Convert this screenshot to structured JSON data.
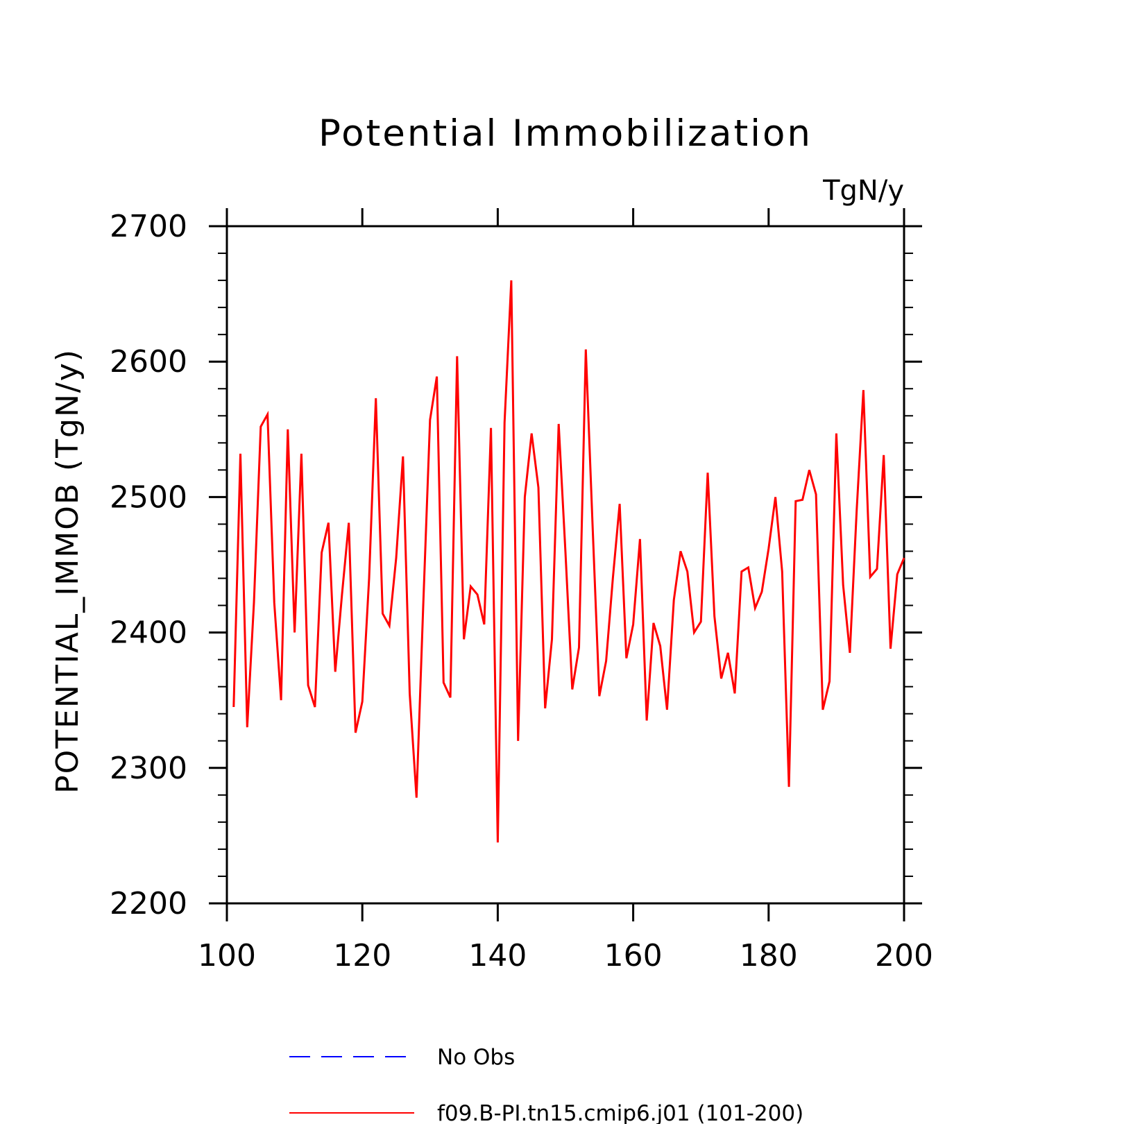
{
  "chart_data": {
    "type": "line",
    "title": "Potential Immobilization",
    "units_label": "TgN/y",
    "ylabel": "POTENTIAL_IMMOB   (TgN/y)",
    "xlabel": "",
    "xlim": [
      100,
      200
    ],
    "ylim": [
      2200,
      2700
    ],
    "xticks": [
      100,
      120,
      140,
      160,
      180,
      200
    ],
    "yticks": [
      2200,
      2300,
      2400,
      2500,
      2600,
      2700
    ],
    "grid": false,
    "legend_position": "bottom",
    "legend": [
      {
        "name": "No Obs",
        "color": "#0000ff",
        "style": "dashed"
      },
      {
        "name": "f09.B-PI.tn15.cmip6.j01 (101-200)",
        "color": "#ff0000",
        "style": "solid"
      }
    ],
    "series": [
      {
        "name": "f09.B-PI.tn15.cmip6.j01 (101-200)",
        "color": "#ff0000",
        "x": [
          101,
          102,
          103,
          104,
          105,
          106,
          107,
          108,
          109,
          110,
          111,
          112,
          113,
          114,
          115,
          116,
          117,
          118,
          119,
          120,
          121,
          122,
          123,
          124,
          125,
          126,
          127,
          128,
          129,
          130,
          131,
          132,
          133,
          134,
          135,
          136,
          137,
          138,
          139,
          140,
          141,
          142,
          143,
          144,
          145,
          146,
          147,
          148,
          149,
          150,
          151,
          152,
          153,
          154,
          155,
          156,
          157,
          158,
          159,
          160,
          161,
          162,
          163,
          164,
          165,
          166,
          167,
          168,
          169,
          170,
          171,
          172,
          173,
          174,
          175,
          176,
          177,
          178,
          179,
          180,
          181,
          182,
          183,
          184,
          185,
          186,
          187,
          188,
          189,
          190,
          191,
          192,
          193,
          194,
          195,
          196,
          197,
          198,
          199,
          200
        ],
        "values": [
          2345,
          2532,
          2330,
          2422,
          2552,
          2561,
          2422,
          2350,
          2550,
          2400,
          2532,
          2361,
          2345,
          2459,
          2481,
          2371,
          2428,
          2481,
          2326,
          2349,
          2440,
          2573,
          2414,
          2405,
          2455,
          2530,
          2355,
          2278,
          2420,
          2557,
          2589,
          2363,
          2352,
          2604,
          2395,
          2434,
          2428,
          2406,
          2551,
          2245,
          2555,
          2660,
          2320,
          2500,
          2547,
          2507,
          2344,
          2395,
          2554,
          2459,
          2358,
          2389,
          2609,
          2480,
          2353,
          2379,
          2440,
          2495,
          2381,
          2406,
          2469,
          2335,
          2407,
          2390,
          2343,
          2424,
          2460,
          2445,
          2400,
          2408,
          2518,
          2412,
          2366,
          2385,
          2355,
          2445,
          2448,
          2418,
          2430,
          2462,
          2500,
          2445,
          2286,
          2497,
          2498,
          2520,
          2502,
          2343,
          2364,
          2547,
          2435,
          2385,
          2490,
          2579,
          2441,
          2447,
          2531,
          2388,
          2443,
          2455
        ]
      }
    ]
  }
}
